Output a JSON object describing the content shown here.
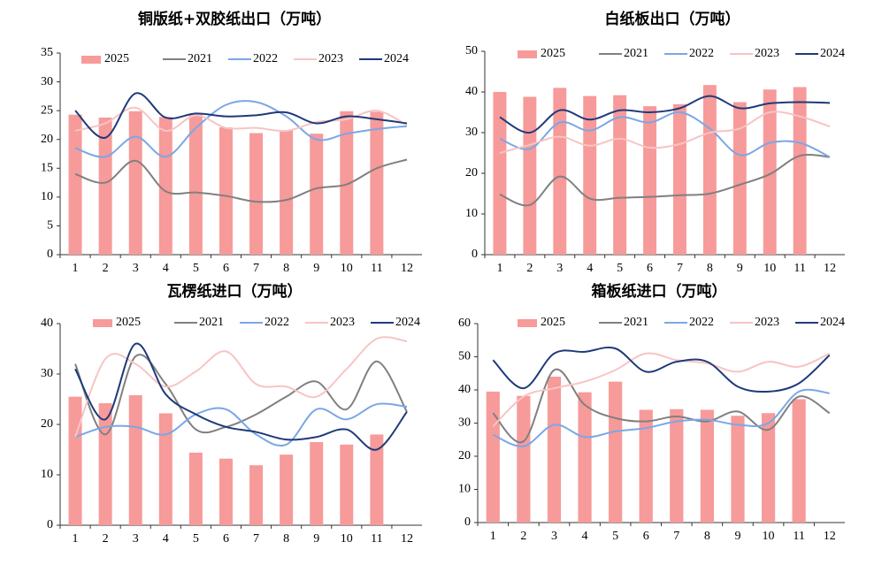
{
  "chart_data": [
    {
      "type": "combo",
      "title": "铜版纸+双胶纸出口（万吨）",
      "categories": [
        "1",
        "2",
        "3",
        "4",
        "5",
        "6",
        "7",
        "8",
        "9",
        "10",
        "11",
        "12"
      ],
      "ylim": [
        0,
        35
      ],
      "yticks": [
        0,
        5,
        10,
        15,
        20,
        25,
        30,
        35
      ],
      "smooth": true,
      "series": [
        {
          "name": "2025",
          "type": "bar",
          "color": "#f79a9a",
          "values": [
            24.3,
            23.8,
            24.9,
            23.9,
            24.4,
            22.1,
            21.1,
            21.6,
            21.0,
            24.9,
            24.8,
            null
          ]
        },
        {
          "name": "2021",
          "type": "line",
          "color": "#808080",
          "values": [
            14,
            12.5,
            16.3,
            11,
            10.8,
            10.2,
            9.2,
            9.5,
            11.5,
            12.2,
            15,
            16.5
          ]
        },
        {
          "name": "2022",
          "type": "line",
          "color": "#7aa7e6",
          "values": [
            18.5,
            17,
            20.5,
            17,
            22,
            26,
            26.5,
            24,
            20,
            21,
            21.8,
            22.3
          ]
        },
        {
          "name": "2023",
          "type": "line",
          "color": "#f8c4c4",
          "values": [
            21.5,
            22.8,
            25.5,
            21.5,
            24.2,
            22,
            22,
            21.5,
            23,
            23.5,
            25,
            22.5
          ]
        },
        {
          "name": "2024",
          "type": "line",
          "color": "#1f3a7a",
          "values": [
            25,
            20.3,
            28,
            23.8,
            24.5,
            24,
            24.2,
            24.7,
            22.8,
            24,
            23.5,
            22.8
          ]
        }
      ]
    },
    {
      "type": "combo",
      "title": "白纸板出口（万吨）",
      "categories": [
        "1",
        "2",
        "3",
        "4",
        "5",
        "6",
        "7",
        "8",
        "9",
        "10",
        "11",
        "12"
      ],
      "ylim": [
        0,
        50
      ],
      "yticks": [
        0,
        10,
        20,
        30,
        40,
        50
      ],
      "smooth": true,
      "series": [
        {
          "name": "2025",
          "type": "bar",
          "color": "#f79a9a",
          "values": [
            40,
            38.8,
            41,
            39,
            39.2,
            36.5,
            37,
            41.7,
            37.5,
            40.6,
            41.2,
            null
          ]
        },
        {
          "name": "2021",
          "type": "line",
          "color": "#808080",
          "values": [
            14.8,
            12.2,
            19.2,
            13.8,
            14,
            14.2,
            14.6,
            15,
            17.2,
            19.8,
            24.3,
            24
          ]
        },
        {
          "name": "2022",
          "type": "line",
          "color": "#7aa7e6",
          "values": [
            28.5,
            26,
            32.5,
            30.5,
            33.8,
            32.5,
            35,
            31,
            24.5,
            27.5,
            27.5,
            24
          ]
        },
        {
          "name": "2023",
          "type": "line",
          "color": "#f8c4c4",
          "values": [
            25,
            27,
            29,
            26.8,
            28.5,
            26.3,
            27.2,
            30,
            31,
            35,
            34,
            31.5
          ]
        },
        {
          "name": "2024",
          "type": "line",
          "color": "#1f3a7a",
          "values": [
            33.8,
            30,
            35.5,
            33.2,
            35.5,
            35,
            36,
            39,
            36,
            37.2,
            37.5,
            37.3
          ]
        }
      ]
    },
    {
      "type": "combo",
      "title": "瓦楞纸进口（万吨）",
      "categories": [
        "1",
        "2",
        "3",
        "4",
        "5",
        "6",
        "7",
        "8",
        "9",
        "10",
        "11",
        "12"
      ],
      "ylim": [
        0,
        40
      ],
      "yticks": [
        0,
        10,
        20,
        30,
        40
      ],
      "smooth": true,
      "series": [
        {
          "name": "2025",
          "type": "bar",
          "color": "#f79a9a",
          "values": [
            25.5,
            24.2,
            25.8,
            22.2,
            14.4,
            13.2,
            11.9,
            14,
            16.5,
            16,
            18,
            null
          ]
        },
        {
          "name": "2021",
          "type": "line",
          "color": "#808080",
          "values": [
            32,
            18,
            33.5,
            28,
            19,
            19.5,
            22,
            25.5,
            28.5,
            23,
            32.5,
            22.5
          ]
        },
        {
          "name": "2022",
          "type": "line",
          "color": "#7aa7e6",
          "values": [
            17.5,
            19.5,
            19.5,
            18,
            22,
            23,
            18,
            16,
            23,
            21,
            24,
            23.5
          ]
        },
        {
          "name": "2023",
          "type": "line",
          "color": "#f8c4c4",
          "values": [
            17.5,
            33,
            32,
            27.5,
            30.5,
            34.5,
            28,
            27.5,
            25.5,
            31,
            37,
            36.5
          ]
        },
        {
          "name": "2024",
          "type": "line",
          "color": "#1f3a7a",
          "values": [
            31,
            21,
            36,
            26,
            22,
            19.5,
            18.5,
            17,
            17.5,
            19,
            15,
            22.5
          ]
        }
      ]
    },
    {
      "type": "combo",
      "title": "箱板纸进口（万吨）",
      "categories": [
        "1",
        "2",
        "3",
        "4",
        "5",
        "6",
        "7",
        "8",
        "9",
        "10",
        "11",
        "12"
      ],
      "ylim": [
        0,
        60
      ],
      "yticks": [
        0,
        10,
        20,
        30,
        40,
        50,
        60
      ],
      "smooth": true,
      "series": [
        {
          "name": "2025",
          "type": "bar",
          "color": "#f79a9a",
          "values": [
            39.5,
            38.2,
            44,
            39.3,
            42.5,
            34,
            34.2,
            34,
            32.2,
            33,
            37.2,
            null
          ]
        },
        {
          "name": "2021",
          "type": "line",
          "color": "#808080",
          "values": [
            33,
            24.5,
            46,
            35.5,
            31.5,
            30.5,
            32,
            30.5,
            33.5,
            28,
            38,
            33
          ]
        },
        {
          "name": "2022",
          "type": "line",
          "color": "#7aa7e6",
          "values": [
            26.5,
            23,
            29.5,
            25.8,
            27.5,
            28.5,
            30.5,
            31,
            29.5,
            30,
            39.5,
            39
          ]
        },
        {
          "name": "2023",
          "type": "line",
          "color": "#f8c4c4",
          "values": [
            29,
            38,
            40.5,
            42.5,
            46,
            51,
            49,
            48,
            45.5,
            48.5,
            47,
            51
          ]
        },
        {
          "name": "2024",
          "type": "line",
          "color": "#1f3a7a",
          "values": [
            49,
            40.5,
            51,
            51.5,
            52.5,
            45.5,
            48.5,
            48.5,
            41,
            39.5,
            42,
            50.5
          ]
        }
      ]
    }
  ]
}
